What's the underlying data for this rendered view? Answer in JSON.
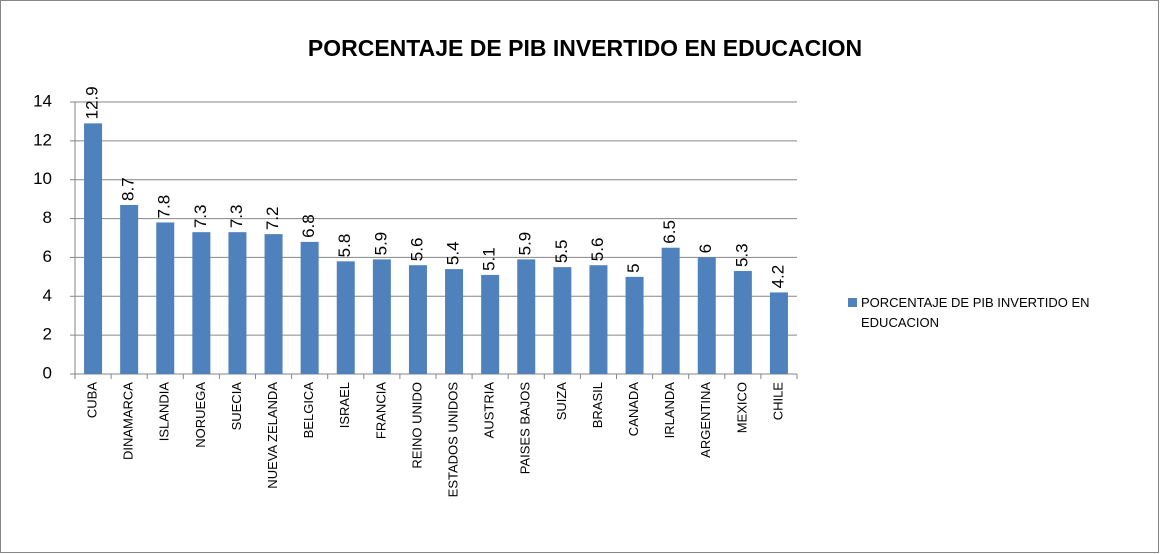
{
  "chart_data": {
    "type": "bar",
    "title": "PORCENTAJE DE PIB INVERTIDO EN EDUCACION",
    "categories": [
      "CUBA",
      "DINAMARCA",
      "ISLANDIA",
      "NORUEGA",
      "SUECIA",
      "NUEVA ZELANDA",
      "BELGICA",
      "ISRAEL",
      "FRANCIA",
      "REINO UNIDO",
      "ESTADOS UNIDOS",
      "AUSTRIA",
      "PAISES BAJOS",
      "SUIZA",
      "BRASIL",
      "CANADA",
      "IRLANDA",
      "ARGENTINA",
      "MEXICO",
      "CHILE"
    ],
    "series": [
      {
        "name": "PORCENTAJE DE PIB INVERTIDO EN EDUCACION",
        "color": "#4f81bd",
        "values": [
          12.9,
          8.7,
          7.8,
          7.3,
          7.3,
          7.2,
          6.8,
          5.8,
          5.9,
          5.6,
          5.4,
          5.1,
          5.9,
          5.5,
          5.6,
          5,
          6.5,
          6,
          5.3,
          4.2
        ]
      }
    ],
    "ylim": [
      0,
      14
    ],
    "yticks": [
      0,
      2,
      4,
      6,
      8,
      10,
      12,
      14
    ],
    "grid": true,
    "legend": "right"
  }
}
